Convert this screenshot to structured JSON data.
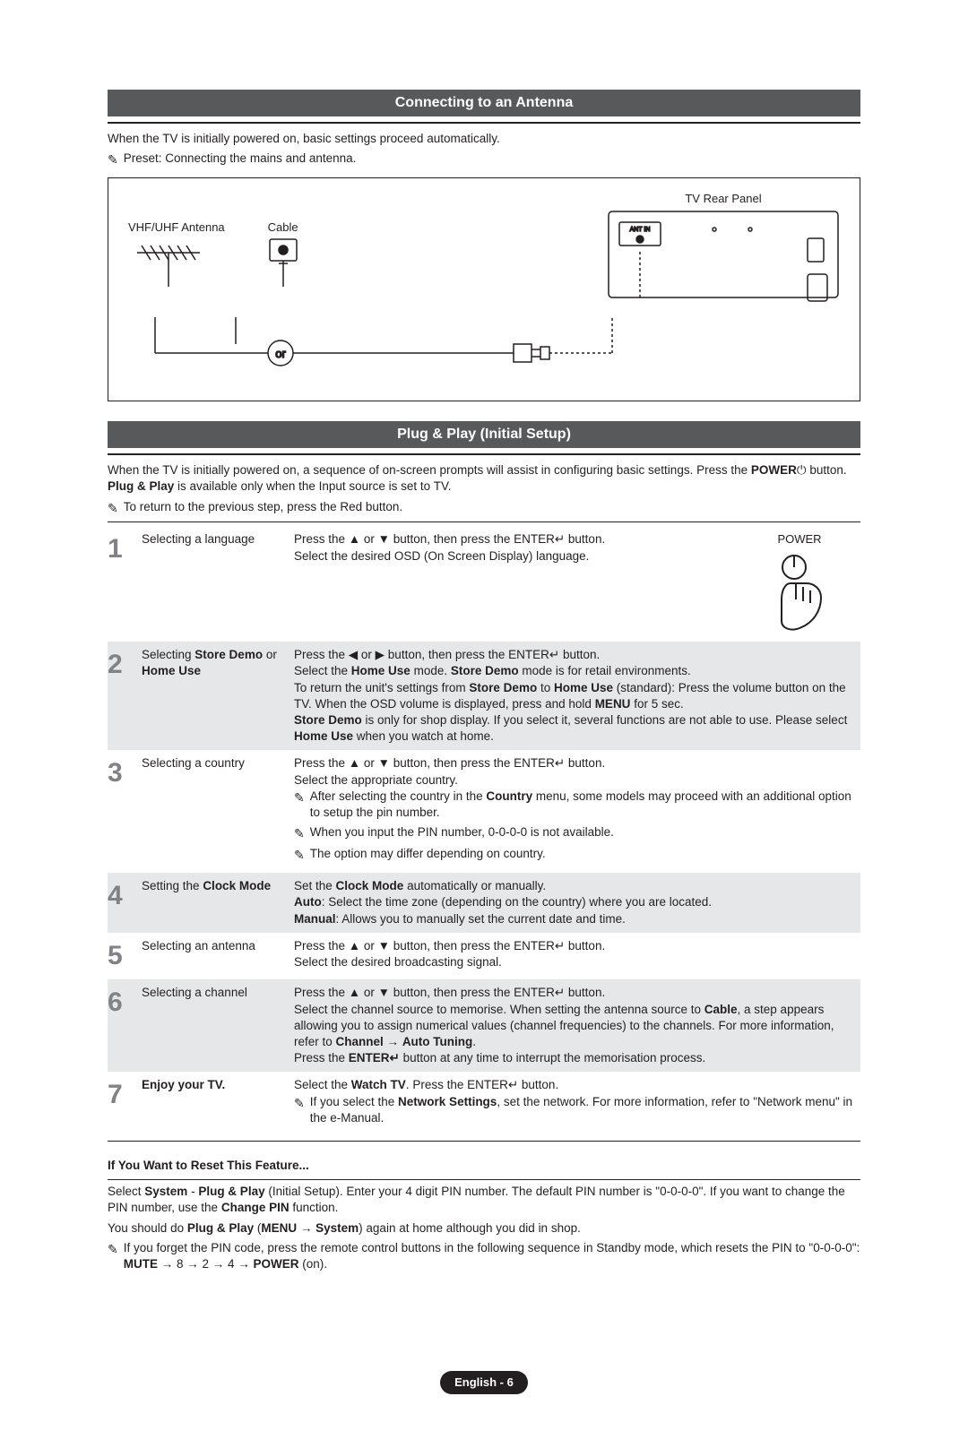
{
  "section1": {
    "title": "Connecting to an Antenna",
    "intro": "When the TV is initially powered on, basic settings proceed automatically.",
    "preset_note": "Preset: Connecting the mains and antenna.",
    "labels": {
      "vhf_uhf": "VHF/UHF Antenna",
      "cable": "Cable",
      "rear_panel": "TV Rear Panel",
      "or": "or",
      "ant_in": "ANT IN"
    }
  },
  "section2": {
    "title": "Plug & Play (Initial Setup)",
    "intro_a": "When the TV is initially powered on, a sequence of on-screen prompts will assist in configuring basic settings. Press the ",
    "intro_b_bold": "POWER",
    "intro_c": " button. ",
    "intro_d_bold": "Plug & Play",
    "intro_e": " is available only when the Input source is set to TV.",
    "note_return": "To return to the previous step, press the Red button.",
    "power_label": "POWER"
  },
  "steps": [
    {
      "num": "1",
      "title": "Selecting a language",
      "body_lines": [
        "Press the ▲ or ▼ button, then press the ENTER↵ button.",
        "Select the desired OSD (On Screen Display) language."
      ]
    },
    {
      "num": "2",
      "title_bold": "Selecting Store Demo or Home Use",
      "title_plain": "Selecting ",
      "title_rest": " or ",
      "body_lines": [
        "Press the ◀ or ▶ button, then press the ENTER↵ button.",
        {
          "parts": [
            "Select the ",
            {
              "b": "Home Use"
            },
            " mode. ",
            {
              "b": "Store Demo"
            },
            " mode is for retail environments."
          ]
        },
        {
          "parts": [
            "To return the unit's settings from ",
            {
              "b": "Store Demo"
            },
            " to ",
            {
              "b": "Home Use"
            },
            " (standard): Press the volume button on the TV. When the OSD volume is displayed, press and hold ",
            {
              "b": "MENU"
            },
            " for 5 sec."
          ]
        },
        {
          "parts": [
            {
              "b": "Store Demo"
            },
            " is only for shop display. If you select it, several functions are not able to use. Please select ",
            {
              "b": "Home Use"
            },
            " when you watch at home."
          ]
        }
      ]
    },
    {
      "num": "3",
      "title": "Selecting a country",
      "body_lines": [
        "Press the ▲ or ▼ button, then press the ENTER↵ button.",
        "Select the appropriate country."
      ],
      "notes": [
        {
          "parts": [
            "After selecting the country in the ",
            {
              "b": "Country"
            },
            " menu, some models may proceed with an additional option to setup the pin number."
          ]
        },
        "When you input the PIN number, 0-0-0-0 is not available.",
        "The option may differ depending on country."
      ]
    },
    {
      "num": "4",
      "title_parts": [
        "Setting the ",
        {
          "b": "Clock Mode"
        }
      ],
      "body_lines": [
        {
          "parts": [
            "Set the ",
            {
              "b": "Clock Mode"
            },
            " automatically or manually."
          ]
        },
        {
          "parts": [
            {
              "b": "Auto"
            },
            ": Select the time zone (depending on the country) where you are located."
          ]
        },
        {
          "parts": [
            {
              "b": "Manual"
            },
            ": Allows you to manually set the current date and time."
          ]
        }
      ]
    },
    {
      "num": "5",
      "title": "Selecting an antenna",
      "body_lines": [
        "Press the ▲ or ▼ button, then press the ENTER↵ button.",
        "Select the desired broadcasting signal."
      ]
    },
    {
      "num": "6",
      "title": "Selecting a channel",
      "body_lines": [
        "Press the ▲ or ▼ button, then press the ENTER↵ button.",
        {
          "parts": [
            "Select the channel source to memorise. When setting the antenna source to ",
            {
              "b": "Cable"
            },
            ", a step appears allowing you to assign numerical values (channel frequencies) to the channels. For more information, refer to ",
            {
              "b": "Channel"
            },
            " → ",
            {
              "b": "Auto Tuning"
            },
            "."
          ]
        },
        {
          "parts": [
            "Press the ",
            {
              "b": "ENTER↵"
            },
            " button at any time to interrupt the memorisation process."
          ]
        }
      ]
    },
    {
      "num": "7",
      "title_bold_full": "Enjoy your TV.",
      "body_lines": [
        {
          "parts": [
            "Select the ",
            {
              "b": "Watch TV"
            },
            ". Press the ENTER↵ button."
          ]
        }
      ],
      "notes": [
        {
          "parts": [
            "If you select the ",
            {
              "b": "Network Settings"
            },
            ", set the network. For more information, refer to \"Network menu\" in the e-Manual."
          ]
        }
      ]
    }
  ],
  "reset": {
    "heading": "If You Want to Reset This Feature...",
    "para1_parts": [
      "Select ",
      {
        "b": "System"
      },
      " - ",
      {
        "b": "Plug & Play"
      },
      " (Initial Setup). Enter your 4 digit PIN number. The default PIN number is \"0-0-0-0\". If you want to change the PIN number, use the ",
      {
        "b": "Change PIN"
      },
      " function."
    ],
    "para2_parts": [
      "You should do ",
      {
        "b": "Plug & Play"
      },
      " (",
      {
        "b": "MENU"
      },
      " → ",
      {
        "b": "System"
      },
      ") again at home although you did in shop."
    ],
    "note_parts": [
      "If you forget the PIN code, press the remote control buttons in the following sequence in Standby mode, which resets the PIN to \"0-0-0-0\": ",
      {
        "b": "MUTE"
      },
      " → 8 → 2 → 4 → ",
      {
        "b": "POWER"
      },
      " (on)."
    ]
  },
  "footer": {
    "page": "English - 6"
  },
  "colors": {
    "header_bg": "#58595b",
    "header_fg": "#ffffff",
    "alt_row_bg": "#e6e7e8",
    "step_num_fg": "#808285",
    "text": "#231f20",
    "page_bg": "#ffffff"
  }
}
